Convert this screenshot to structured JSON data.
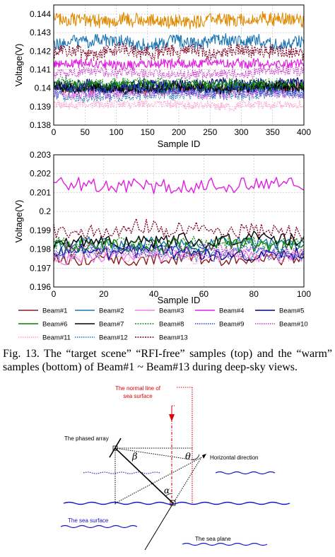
{
  "chart_data": [
    {
      "type": "line",
      "title": "",
      "xlabel": "Sample ID",
      "ylabel": "Voltage(V)",
      "xlim": [
        0,
        400
      ],
      "ylim": [
        0.138,
        0.1445
      ],
      "xticks": [
        0,
        50,
        100,
        150,
        200,
        250,
        300,
        350,
        400
      ],
      "yticks": [
        0.138,
        0.139,
        0.14,
        0.141,
        0.142,
        0.143,
        0.144
      ],
      "ytick_labels": [
        "0.138",
        "0.139",
        "0.14",
        "0.141",
        "0.142",
        "0.143",
        "0.144"
      ],
      "grid": true,
      "n_samples": 400,
      "series": [
        {
          "name": "Beam#1",
          "level": 0.14,
          "amp": 0.00028,
          "color": "#8b1a1a",
          "dash": ""
        },
        {
          "name": "Beam#2",
          "level": 0.1425,
          "amp": 0.00035,
          "color": "#1f77b4",
          "dash": ""
        },
        {
          "name": "Beam#3",
          "level": 0.1397,
          "amp": 0.00025,
          "color": "#ee82ee",
          "dash": ""
        },
        {
          "name": "Beam#4",
          "level": 0.1413,
          "amp": 0.00025,
          "color": "#e020e0",
          "dash": ""
        },
        {
          "name": "Beam#5",
          "level": 0.1402,
          "amp": 0.00028,
          "color": "#000080",
          "dash": ""
        },
        {
          "name": "Beam#6",
          "level": 0.1401,
          "amp": 0.0003,
          "color": "#008000",
          "dash": ""
        },
        {
          "name": "Beam#7",
          "level": 0.14,
          "amp": 0.00025,
          "color": "#000000",
          "dash": ""
        },
        {
          "name": "Beam#8",
          "level": 0.1403,
          "amp": 0.00025,
          "color": "#228b22",
          "dash": "2,1.5"
        },
        {
          "name": "Beam#9",
          "level": 0.1399,
          "amp": 0.00025,
          "color": "#1e3cff",
          "dash": "1.5,1.5"
        },
        {
          "name": "Beam#10",
          "level": 0.1408,
          "amp": 0.00025,
          "color": "#cc33cc",
          "dash": "1.5,1.5"
        },
        {
          "name": "Beam#11",
          "level": 0.1391,
          "amp": 0.00022,
          "color": "#ff99cc",
          "dash": "1.5,1.5"
        },
        {
          "name": "Beam#12",
          "level": 0.1396,
          "amp": 0.00025,
          "color": "#1f6fb4",
          "dash": "1.5,1.5"
        },
        {
          "name": "Beam#13",
          "level": 0.142,
          "amp": 0.00035,
          "color": "#800020",
          "dash": "2,1.5"
        },
        {
          "name": "target",
          "level": 0.1437,
          "amp": 0.00035,
          "color": "#e08a00",
          "dash": ""
        }
      ]
    },
    {
      "type": "line",
      "title": "",
      "xlabel": "Sample ID",
      "ylabel": "Voltage(V)",
      "xlim": [
        0,
        100
      ],
      "ylim": [
        0.196,
        0.203
      ],
      "xticks": [
        0,
        20,
        40,
        60,
        80,
        100
      ],
      "yticks": [
        0.196,
        0.197,
        0.198,
        0.199,
        0.2,
        0.201,
        0.202,
        0.203
      ],
      "ytick_labels": [
        "0.196",
        "0.197",
        "0.198",
        "0.199",
        "0.2",
        "0.201",
        "0.202",
        "0.203"
      ],
      "grid": true,
      "n_samples": 100,
      "series": [
        {
          "name": "Beam#1",
          "level": 0.1975,
          "amp": 0.00035,
          "color": "#8b1a1a",
          "dash": ""
        },
        {
          "name": "Beam#2",
          "level": 0.1983,
          "amp": 0.00035,
          "color": "#1f77b4",
          "dash": ""
        },
        {
          "name": "Beam#3",
          "level": 0.1976,
          "amp": 0.00035,
          "color": "#ee82ee",
          "dash": ""
        },
        {
          "name": "Beam#4",
          "level": 0.2014,
          "amp": 0.0004,
          "color": "#e020e0",
          "dash": ""
        },
        {
          "name": "Beam#5",
          "level": 0.1978,
          "amp": 0.0004,
          "color": "#000080",
          "dash": ""
        },
        {
          "name": "Beam#6",
          "level": 0.1982,
          "amp": 0.0004,
          "color": "#008000",
          "dash": ""
        },
        {
          "name": "Beam#7",
          "level": 0.1984,
          "amp": 0.0004,
          "color": "#000000",
          "dash": ""
        },
        {
          "name": "Beam#8",
          "level": 0.1983,
          "amp": 0.00035,
          "color": "#228b22",
          "dash": "2,1.5"
        },
        {
          "name": "Beam#9",
          "level": 0.1978,
          "amp": 0.00035,
          "color": "#1e3cff",
          "dash": "1.5,1.5"
        },
        {
          "name": "Beam#10",
          "level": 0.1979,
          "amp": 0.00035,
          "color": "#cc33cc",
          "dash": "1.5,1.5"
        },
        {
          "name": "Beam#11",
          "level": 0.1976,
          "amp": 0.00035,
          "color": "#ff99cc",
          "dash": "1.5,1.5"
        },
        {
          "name": "Beam#12",
          "level": 0.1978,
          "amp": 0.00035,
          "color": "#1f6fb4",
          "dash": "1.5,1.5"
        },
        {
          "name": "Beam#13",
          "level": 0.199,
          "amp": 0.0004,
          "color": "#800020",
          "dash": "2,1.5"
        }
      ]
    }
  ],
  "legend": {
    "entries": [
      {
        "label": "Beam#1",
        "color": "#8b1a1a",
        "dash": ""
      },
      {
        "label": "Beam#2",
        "color": "#1f77b4",
        "dash": ""
      },
      {
        "label": "Beam#3",
        "color": "#ee82ee",
        "dash": ""
      },
      {
        "label": "Beam#4",
        "color": "#e020e0",
        "dash": ""
      },
      {
        "label": "Beam#5",
        "color": "#000080",
        "dash": ""
      },
      {
        "label": "Beam#6",
        "color": "#008000",
        "dash": ""
      },
      {
        "label": "Beam#7",
        "color": "#000000",
        "dash": ""
      },
      {
        "label": "Beam#8",
        "color": "#228b22",
        "dash": "2,1.5"
      },
      {
        "label": "Beam#9",
        "color": "#1e3cff",
        "dash": "1.5,1.5"
      },
      {
        "label": "Beam#10",
        "color": "#cc33cc",
        "dash": "1.5,1.5"
      },
      {
        "label": "Beam#11",
        "color": "#ff99cc",
        "dash": "1.5,1.5"
      },
      {
        "label": "Beam#12",
        "color": "#1f6fb4",
        "dash": "1.5,1.5"
      },
      {
        "label": "Beam#13",
        "color": "#800020",
        "dash": "2,1.5"
      }
    ]
  },
  "caption": "Fig. 13. The “target scene” “RFI-free” samples (top) and the “warm” samples (bottom) of Beam#1 ~ Beam#13 during deep-sky views.",
  "diagram": {
    "normal_line_label_1": "The normal line of",
    "normal_line_label_2": "sea surface",
    "phased_array_label": "The phased array",
    "horizontal_direction_label": "Horizontal direction",
    "sea_surface_label": "The sea surface",
    "sea_plane_label": "The sea plane",
    "beta": "β",
    "theta": "θ",
    "alpha": "α",
    "red_color": "#e00000",
    "blue_color": "#1414c8"
  }
}
